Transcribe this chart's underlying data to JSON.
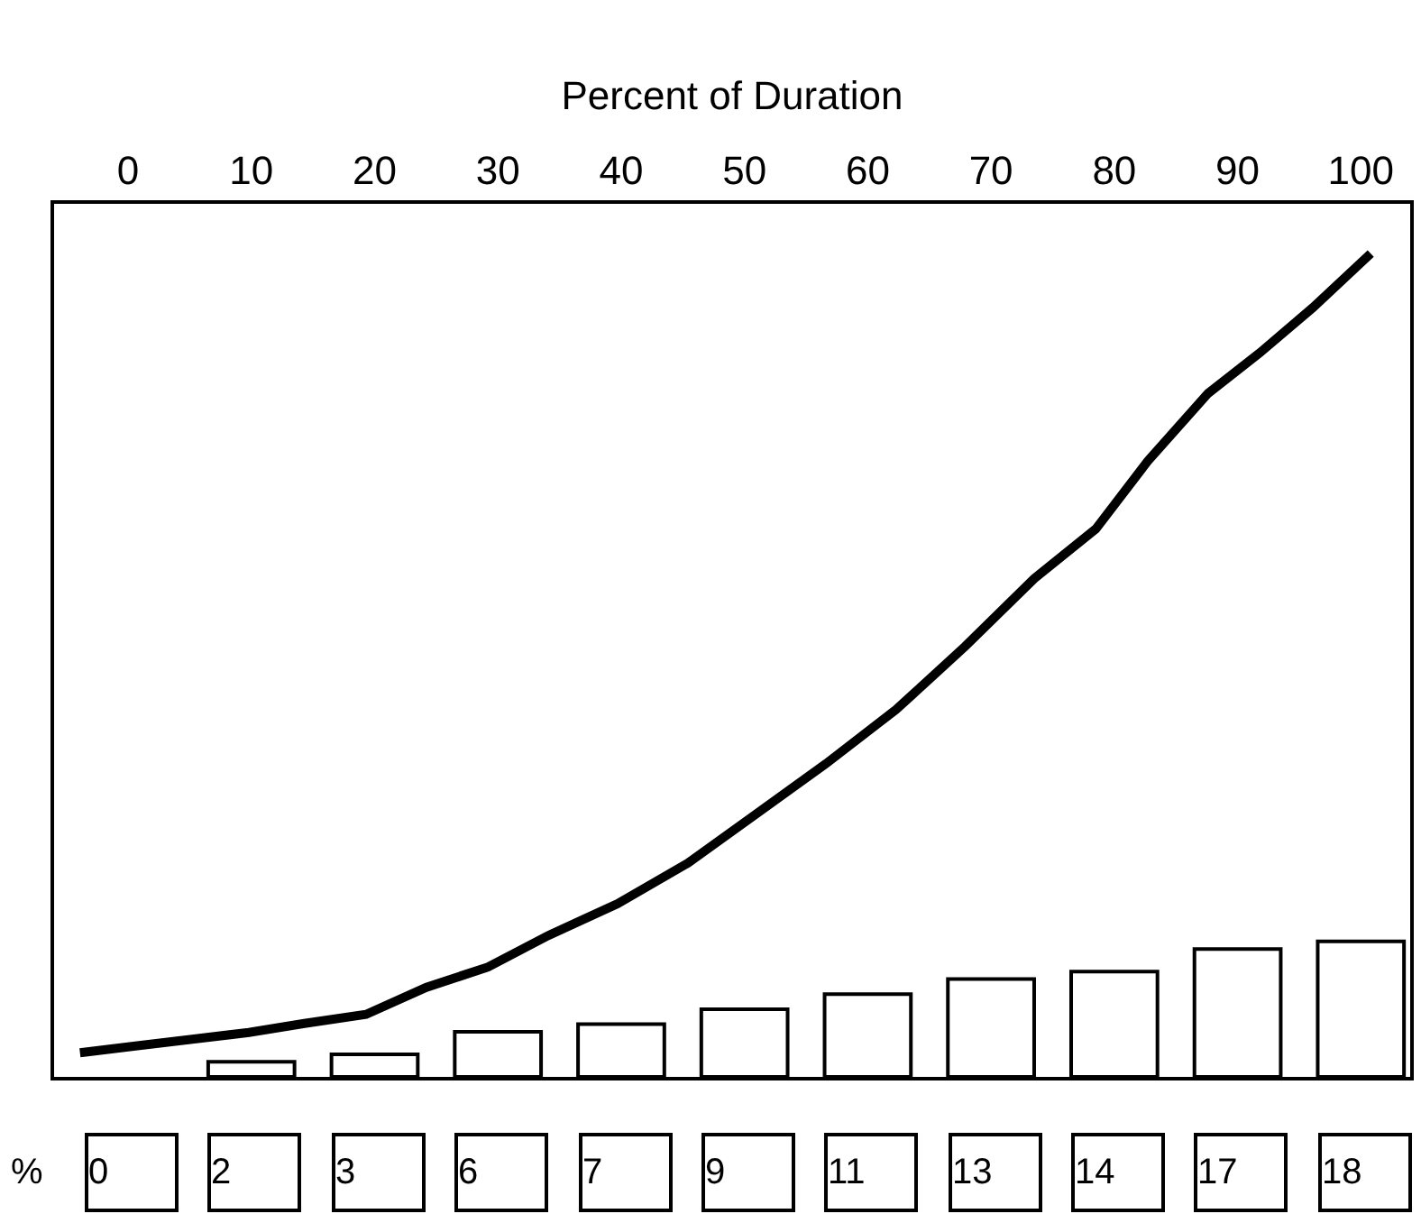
{
  "chart_data": {
    "type": "bar",
    "xlabel": "Percent of Duration",
    "x": [
      0,
      10,
      20,
      30,
      40,
      50,
      60,
      70,
      80,
      90,
      100
    ],
    "series": [
      {
        "color": "#ffffff",
        "values": [
          0,
          2,
          3,
          6,
          7,
          9,
          11,
          13,
          14,
          17,
          18
        ],
        "value_labels": [
          "0",
          "2",
          "3",
          "6",
          "7",
          "9",
          "11",
          "13",
          "14",
          "17",
          "18"
        ]
      },
      {
        "type": "line",
        "color": "#000000",
        "x": [
          -3.9,
          0.6,
          5.2,
          9.8,
          14.3,
          19.3,
          24.2,
          29.2,
          34.1,
          39.7,
          45.4,
          51.0,
          56.6,
          62.3,
          67.9,
          73.5,
          78.5,
          82.7,
          87.6,
          91.8,
          96.1,
          100.8
        ],
        "values": [
          3.2,
          4.1,
          5.0,
          5.9,
          7.1,
          8.3,
          11.9,
          14.6,
          18.8,
          23.0,
          28.4,
          35.0,
          41.6,
          48.8,
          57.2,
          66.2,
          72.8,
          81.8,
          90.8,
          96.2,
          102.2,
          109.4
        ]
      }
    ],
    "xlim": [
      -6,
      104
    ],
    "xticks": [
      0,
      10,
      20,
      30,
      40,
      50,
      60,
      70,
      80,
      90,
      100
    ],
    "ylim": [
      0,
      116
    ],
    "tick_labels": "x",
    "marker": "none",
    "line_style": "solid",
    "annotations": [
      "%"
    ]
  }
}
